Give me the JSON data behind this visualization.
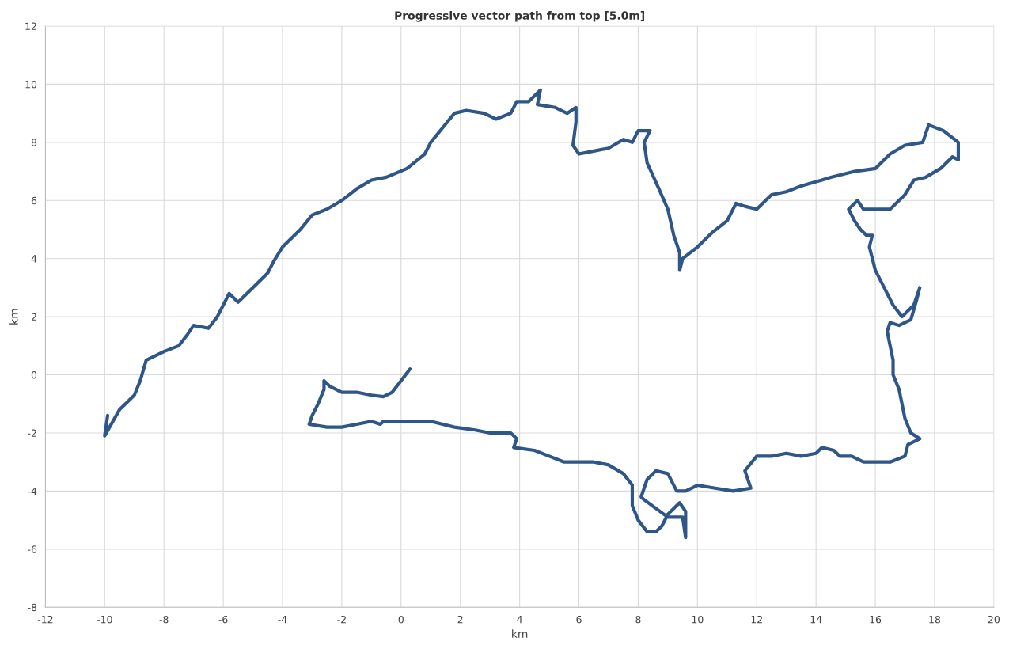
{
  "chart_data": {
    "type": "line",
    "title": "Progressive vector path from top [5.0m]",
    "xlabel": "km",
    "ylabel": "km",
    "xlim": [
      -12,
      20
    ],
    "ylim": [
      -8,
      12
    ],
    "xticks": [
      -12,
      -10,
      -8,
      -6,
      -4,
      -2,
      0,
      2,
      4,
      6,
      8,
      10,
      12,
      14,
      16,
      18,
      20
    ],
    "yticks": [
      -8,
      -6,
      -4,
      -2,
      0,
      2,
      4,
      6,
      8,
      10,
      12
    ],
    "grid": true,
    "marker": "none",
    "line_style": "solid",
    "series": [
      {
        "color": "#2e5688",
        "x": [
          0.3,
          0,
          -0.3,
          -0.6,
          -1,
          -1.5,
          -2,
          -2.4,
          -2.6,
          -2.6,
          -2.8,
          -3.0,
          -3.1,
          -2.5,
          -2,
          -1.5,
          -1,
          -0.7,
          -0.6,
          0,
          1,
          1.8,
          2.5,
          3,
          3.7,
          3.9,
          3.8,
          4.5,
          5,
          5.5,
          6.5,
          7,
          7.5,
          7.8,
          7.8,
          8.0,
          8.3,
          8.6,
          8.8,
          9.0,
          9.4,
          9.6,
          9.6,
          9.5,
          9.0,
          8.6,
          8.2,
          8.1,
          8.3,
          8.6,
          9,
          9.3,
          9.6,
          10,
          10.6,
          11.2,
          11.8,
          11.6,
          12,
          12.5,
          13,
          13.5,
          14,
          14.2,
          14.6,
          14.8,
          15.2,
          15.6,
          16.5,
          17,
          17.1,
          17.5,
          17.2,
          17,
          16.9,
          16.8,
          16.6,
          16.6,
          16.5,
          16.4,
          16.5,
          16.8,
          17.2,
          17.4,
          17.5,
          17.3,
          16.9,
          16.6,
          16.3,
          16,
          15.8,
          15.9,
          15.7,
          15.5,
          15.3,
          15.1,
          15.4,
          15.6,
          16.5,
          17,
          17.3,
          17.7,
          18.2,
          18.6,
          18.8,
          18.8,
          18.3,
          17.8,
          17.6,
          17,
          16.5,
          16,
          15.3,
          14.5,
          14.2,
          13.5,
          13,
          12.5,
          12,
          11.6,
          11.3,
          11,
          10.5,
          10,
          9.5,
          9.4,
          9.4,
          9.2,
          9,
          8.7,
          8.3,
          8.2,
          8.4,
          8,
          7.8,
          7.5,
          7,
          6.5,
          6.0,
          5.8,
          5.9,
          5.9,
          5.6,
          5.2,
          4.6,
          4.7,
          4.3,
          3.9,
          3.7,
          3.2,
          2.8,
          2.2,
          1.8,
          1.4,
          1,
          0.8,
          0.2,
          -0.5,
          -1,
          -1.5,
          -2,
          -2.5,
          -3,
          -3.4,
          -4,
          -4.3,
          -4.5,
          -5,
          -5.5,
          -5.8,
          -6.2,
          -6.5,
          -7,
          -7.2,
          -7.5,
          -8,
          -8.6,
          -8.8,
          -9,
          -9.5,
          -10,
          -9.9
        ],
        "values": [
          0.2,
          -0.2,
          -0.6,
          -0.75,
          -0.7,
          -0.6,
          -0.6,
          -0.4,
          -0.2,
          -0.5,
          -1,
          -1.4,
          -1.7,
          -1.8,
          -1.8,
          -1.7,
          -1.6,
          -1.7,
          -1.6,
          -1.6,
          -1.6,
          -1.8,
          -1.9,
          -2,
          -2.0,
          -2.2,
          -2.5,
          -2.6,
          -2.8,
          -3.0,
          -3.0,
          -3.1,
          -3.4,
          -3.8,
          -4.5,
          -5.0,
          -5.4,
          -5.4,
          -5.2,
          -4.8,
          -4.4,
          -4.7,
          -5.6,
          -4.9,
          -4.9,
          -4.6,
          -4.3,
          -4.2,
          -3.6,
          -3.3,
          -3.4,
          -4,
          -4,
          -3.8,
          -3.9,
          -4,
          -3.9,
          -3.3,
          -2.8,
          -2.8,
          -2.7,
          -2.8,
          -2.7,
          -2.5,
          -2.6,
          -2.8,
          -2.8,
          -3.0,
          -3.0,
          -2.8,
          -2.4,
          -2.2,
          -2.0,
          -1.5,
          -1,
          -0.5,
          0,
          0.5,
          1,
          1.5,
          1.8,
          1.7,
          1.9,
          2.6,
          3.0,
          2.4,
          2.0,
          2.4,
          3.0,
          3.6,
          4.4,
          4.8,
          4.8,
          5.0,
          5.3,
          5.7,
          6.0,
          5.7,
          5.7,
          6.2,
          6.7,
          6.8,
          7.1,
          7.5,
          7.4,
          8.0,
          8.4,
          8.6,
          8.0,
          7.9,
          7.6,
          7.1,
          7.0,
          6.8,
          6.7,
          6.5,
          6.3,
          6.2,
          5.7,
          5.8,
          5.9,
          5.3,
          4.9,
          4.4,
          4.0,
          3.6,
          4.2,
          4.8,
          5.7,
          6.4,
          7.3,
          8.0,
          8.4,
          8.4,
          8.0,
          8.1,
          7.8,
          7.7,
          7.6,
          7.9,
          8.7,
          9.2,
          9.0,
          9.2,
          9.3,
          9.8,
          9.4,
          9.4,
          9.0,
          8.8,
          9.0,
          9.1,
          9.0,
          8.5,
          8.0,
          7.6,
          7.1,
          6.8,
          6.7,
          6.4,
          6.0,
          5.7,
          5.5,
          5.0,
          4.4,
          3.9,
          3.5,
          3.0,
          2.5,
          2.8,
          2.0,
          1.6,
          1.7,
          1.4,
          1.0,
          0.8,
          0.5,
          -0.2,
          -0.7,
          -1.2,
          -2.1,
          -1.4
        ]
      }
    ]
  }
}
